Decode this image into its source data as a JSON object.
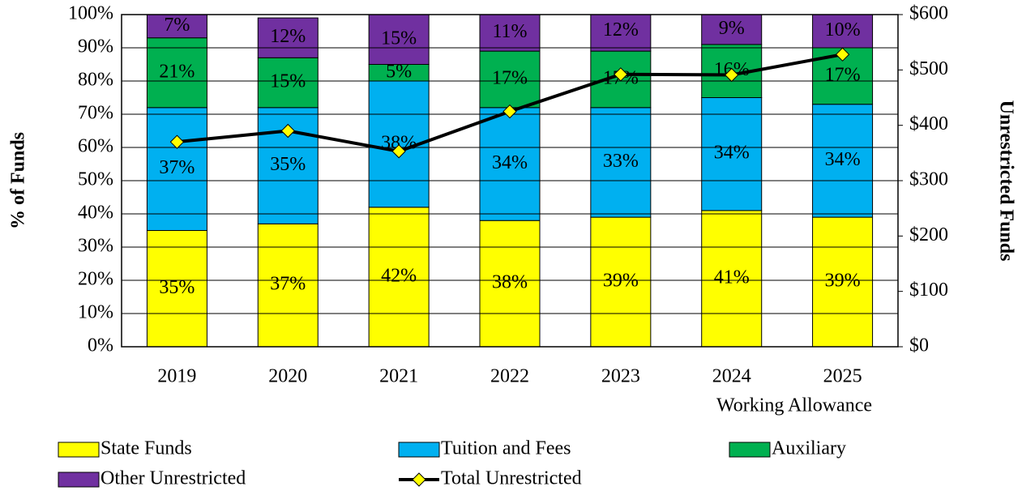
{
  "chart_data": {
    "type": "bar",
    "stacked": true,
    "categories": [
      "2019",
      "2020",
      "2021",
      "2022",
      "2023",
      "2024",
      "2025"
    ],
    "annotation": "Working  Allowance",
    "y_label": "% of Funds",
    "y2_label": "Unrestricted Funds",
    "ylim": [
      0,
      100
    ],
    "yticks": [
      {
        "value": 0,
        "label": "0%"
      },
      {
        "value": 10,
        "label": "10%"
      },
      {
        "value": 20,
        "label": "20%"
      },
      {
        "value": 30,
        "label": "30%"
      },
      {
        "value": 40,
        "label": "40%"
      },
      {
        "value": 50,
        "label": "50%"
      },
      {
        "value": 60,
        "label": "60%"
      },
      {
        "value": 70,
        "label": "70%"
      },
      {
        "value": 80,
        "label": "80%"
      },
      {
        "value": 90,
        "label": "90%"
      },
      {
        "value": 100,
        "label": "100%"
      }
    ],
    "y2lim": [
      0,
      600
    ],
    "y2ticks": [
      {
        "value": 0,
        "label": "$0"
      },
      {
        "value": 100,
        "label": "$100"
      },
      {
        "value": 200,
        "label": "$200"
      },
      {
        "value": 300,
        "label": "$300"
      },
      {
        "value": 400,
        "label": "$400"
      },
      {
        "value": 500,
        "label": "$500"
      },
      {
        "value": 600,
        "label": "$600"
      }
    ],
    "grid": true,
    "series": [
      {
        "name": "State Funds",
        "color": "#ffff00",
        "values": [
          35,
          37,
          42,
          38,
          39,
          41,
          39
        ],
        "value_labels": [
          "35%",
          "37%",
          "42%",
          "38%",
          "39%",
          "41%",
          "39%"
        ]
      },
      {
        "name": "Tuition and Fees",
        "color": "#00b0f0",
        "values": [
          37,
          35,
          38,
          34,
          33,
          34,
          34
        ],
        "value_labels": [
          "37%",
          "35%",
          "38%",
          "34%",
          "33%",
          "34%",
          "34%"
        ]
      },
      {
        "name": "Auxiliary",
        "color": "#00b050",
        "values": [
          21,
          15,
          5,
          17,
          17,
          16,
          17
        ],
        "value_labels": [
          "21%",
          "15%",
          "5%",
          "17%",
          "17%",
          "16%",
          "17%"
        ]
      },
      {
        "name": "Other Unrestricted",
        "color": "#7030a0",
        "values": [
          7,
          12,
          15,
          11,
          12,
          9,
          10
        ],
        "value_labels": [
          "7%",
          "12%",
          "15%",
          "11%",
          "12%",
          "9%",
          "10%"
        ]
      },
      {
        "name": "Total Unrestricted",
        "type": "line",
        "axis": "y2",
        "color": "#000000",
        "marker_color": "#ffff00",
        "values": [
          370,
          390,
          353,
          425,
          492,
          491,
          528
        ]
      }
    ]
  }
}
